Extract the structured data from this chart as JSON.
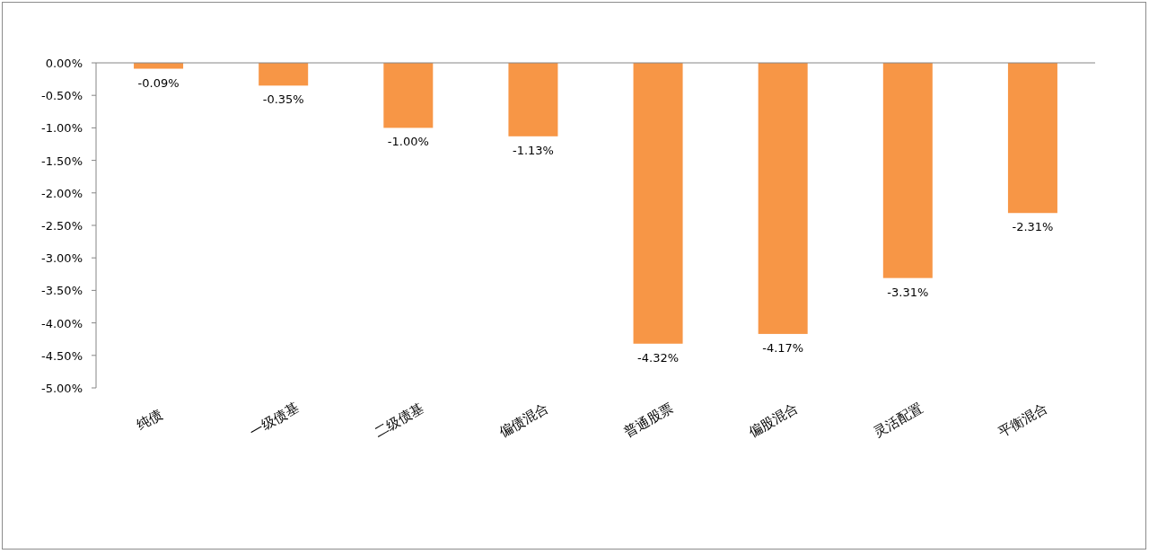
{
  "chart_data": {
    "type": "bar",
    "categories": [
      "纯债",
      "一级债基",
      "二级债基",
      "偏债混合",
      "普通股票",
      "偏股混合",
      "灵活配置",
      "平衡混合"
    ],
    "values": [
      -0.09,
      -0.35,
      -1.0,
      -1.13,
      -4.32,
      -4.17,
      -3.31,
      -2.31
    ],
    "value_labels": [
      "-0.09%",
      "-0.35%",
      "-1.00%",
      "-1.13%",
      "-4.32%",
      "-4.17%",
      "-3.31%",
      "-2.31%"
    ],
    "color": "#f79646",
    "ylim": [
      -5,
      0
    ],
    "yticks": [
      {
        "value": 0,
        "label": "0.00%"
      },
      {
        "value": -0.5,
        "label": "-0.50%"
      },
      {
        "value": -1,
        "label": "-1.00%"
      },
      {
        "value": -1.5,
        "label": "-1.50%"
      },
      {
        "value": -2,
        "label": "-2.00%"
      },
      {
        "value": -2.5,
        "label": "-2.50%"
      },
      {
        "value": -3,
        "label": "-3.00%"
      },
      {
        "value": -3.5,
        "label": "-3.50%"
      },
      {
        "value": -4,
        "label": "-4.00%"
      },
      {
        "value": -4.5,
        "label": "-4.50%"
      },
      {
        "value": -5,
        "label": "-5.00%"
      }
    ]
  }
}
